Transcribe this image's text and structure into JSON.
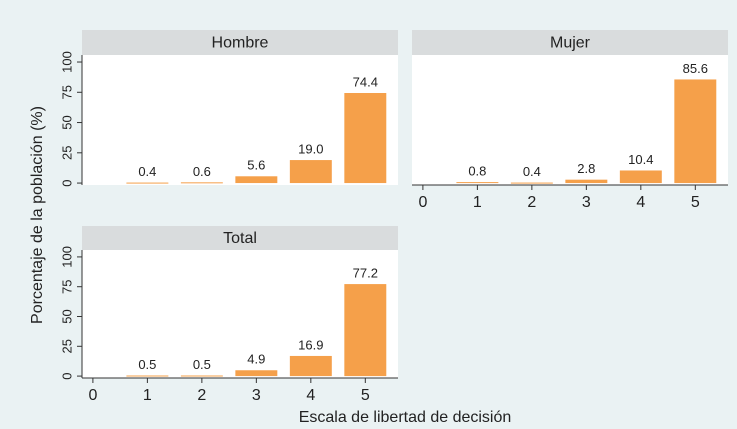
{
  "axis_titles": {
    "y": "Porcentaje de la población (%)",
    "x": "Escala de libertad de decisión"
  },
  "chart_data": [
    {
      "type": "bar",
      "title": "Hombre",
      "x": [
        1,
        2,
        3,
        4,
        5
      ],
      "values": [
        0.4,
        0.6,
        5.6,
        19.0,
        74.4
      ],
      "value_labels": [
        "0.4",
        "0.6",
        "5.6",
        "19.0",
        "74.4"
      ],
      "color": "#f5a04a",
      "xlim": [
        -0.2,
        5.6
      ],
      "ylim": [
        -1.6,
        105.8
      ],
      "yticks": [
        0,
        25,
        50,
        75,
        100
      ]
    },
    {
      "type": "bar",
      "title": "Mujer",
      "x": [
        1,
        2,
        3,
        4,
        5
      ],
      "values": [
        0.8,
        0.4,
        2.8,
        10.4,
        85.6
      ],
      "color": "#f5a04a",
      "xlim": [
        -0.2,
        5.6
      ],
      "ylim": [
        -1.6,
        105.8
      ],
      "xticks": [
        0,
        1,
        2,
        3,
        4,
        5
      ]
    },
    {
      "type": "bar",
      "title": "Total",
      "x": [
        1,
        2,
        3,
        4,
        5
      ],
      "values": [
        0.5,
        0.5,
        4.9,
        16.9,
        77.2
      ],
      "color": "#f5a04a",
      "xlim": [
        -0.2,
        5.6
      ],
      "ylim": [
        -1.6,
        105.8
      ],
      "xticks": [
        0,
        1,
        2,
        3,
        4,
        5
      ],
      "yticks": [
        0,
        25,
        50,
        75,
        100
      ]
    }
  ]
}
